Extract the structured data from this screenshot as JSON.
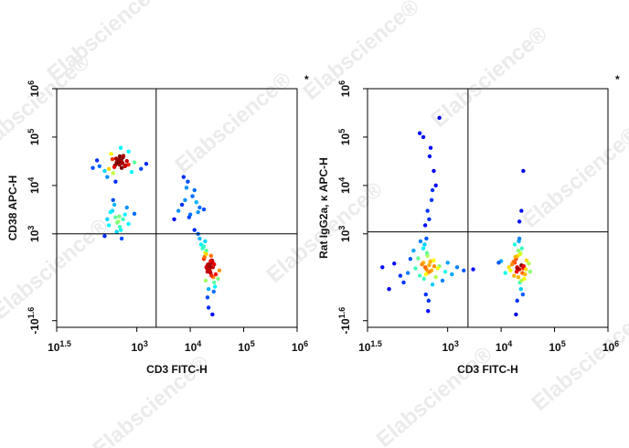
{
  "watermark": "Elabscience®",
  "chart_data": [
    {
      "type": "scatter",
      "xlabel": "CD3 FITC-H",
      "ylabel": "CD38 APC-H",
      "annotation": "*",
      "xscale": "log",
      "yscale": "biexponential",
      "xlim": [
        31.62,
        1000000
      ],
      "ylim": [
        -65,
        1000000
      ],
      "xticks": [
        {
          "value": 31.62,
          "label": "10",
          "exponent": "1.5"
        },
        {
          "value": 1000,
          "label": "10",
          "exponent": "3"
        },
        {
          "value": 10000,
          "label": "10",
          "exponent": "4"
        },
        {
          "value": 100000,
          "label": "10",
          "exponent": "5"
        },
        {
          "value": 1000000,
          "label": "10",
          "exponent": "6"
        }
      ],
      "yticks": [
        {
          "value": -39.81,
          "label": "-10",
          "exponent": "1.6"
        },
        {
          "value": 1000,
          "label": "10",
          "exponent": "3"
        },
        {
          "value": 10000,
          "label": "10",
          "exponent": "4"
        },
        {
          "value": 100000,
          "label": "10",
          "exponent": "5"
        },
        {
          "value": 1000000,
          "label": "10",
          "exponent": "6"
        }
      ],
      "gates": {
        "x": 2300,
        "y": 1000
      },
      "x": [
        420,
        480,
        510,
        390,
        450,
        530,
        600,
        350,
        300,
        700,
        460,
        440,
        380,
        550,
        650,
        250,
        200,
        900,
        1200,
        480,
        410,
        520,
        470,
        360,
        560,
        620,
        330,
        280,
        430,
        490,
        800,
        150,
        180,
        1500,
        700,
        400,
        500,
        450,
        540,
        460,
        300,
        400,
        500,
        350,
        450,
        600,
        250,
        700,
        380,
        420,
        550,
        320,
        480,
        650,
        280,
        520,
        900,
        430,
        360,
        470,
        6000,
        8000,
        10000,
        12000,
        7000,
        15000,
        9000,
        5000,
        11000,
        14000,
        8500,
        13000,
        7500,
        18000,
        9500,
        20000,
        22000,
        25000,
        18000,
        24000,
        21000,
        27000,
        19000,
        23000,
        26000,
        17000,
        28000,
        22500,
        20500,
        24500,
        30000,
        16000,
        21500,
        23500,
        25500,
        19500,
        18500,
        26500,
        22000,
        24000,
        20000,
        29000,
        15000,
        33000,
        21000,
        23000,
        25000,
        14000,
        27500,
        19000,
        22000,
        24000,
        35000,
        12000,
        26000,
        20000,
        23000,
        21000,
        28000,
        18000
      ],
      "y": [
        30000,
        28000,
        33000,
        26000,
        31000,
        29000,
        25000,
        35000,
        22000,
        27000,
        34000,
        30000,
        24000,
        38000,
        32000,
        20000,
        25000,
        30000,
        22000,
        40000,
        36000,
        23000,
        27000,
        18000,
        41000,
        26000,
        45000,
        15000,
        29000,
        31000,
        19000,
        23000,
        33000,
        28000,
        50000,
        12000,
        60000,
        32000,
        29000,
        30500,
        1500,
        2200,
        1200,
        3000,
        1800,
        2500,
        900,
        1600,
        4000,
        1100,
        2000,
        2800,
        1400,
        3500,
        2000,
        800,
        2600,
        1700,
        5000,
        2300,
        3000,
        5000,
        2500,
        8000,
        4000,
        3500,
        12000,
        2000,
        6000,
        2800,
        9000,
        4500,
        15000,
        3200,
        2200,
        200,
        180,
        250,
        300,
        150,
        220,
        120,
        400,
        170,
        260,
        500,
        90,
        210,
        190,
        350,
        140,
        600,
        230,
        160,
        280,
        100,
        330,
        200,
        60,
        240,
        450,
        70,
        800,
        110,
        30,
        190,
        130,
        1000,
        50,
        700,
        0,
        270,
        170,
        1200,
        -20,
        380,
        210,
        160,
        230,
        550
      ]
    },
    {
      "type": "scatter",
      "xlabel": "CD3 FITC-H",
      "ylabel": "Rat IgG2a, κ APC-H",
      "annotation": "*",
      "xscale": "log",
      "yscale": "biexponential",
      "xlim": [
        31.62,
        1000000
      ],
      "ylim": [
        -65,
        1000000
      ],
      "xticks": [
        {
          "value": 31.62,
          "label": "10",
          "exponent": "1.5"
        },
        {
          "value": 1000,
          "label": "10",
          "exponent": "3"
        },
        {
          "value": 10000,
          "label": "10",
          "exponent": "4"
        },
        {
          "value": 100000,
          "label": "10",
          "exponent": "5"
        },
        {
          "value": 1000000,
          "label": "10",
          "exponent": "6"
        }
      ],
      "yticks": [
        {
          "value": -39.81,
          "label": "-10",
          "exponent": "1.6"
        },
        {
          "value": 1000,
          "label": "10",
          "exponent": "3"
        },
        {
          "value": 10000,
          "label": "10",
          "exponent": "4"
        },
        {
          "value": 100000,
          "label": "10",
          "exponent": "5"
        },
        {
          "value": 1000000,
          "label": "10",
          "exponent": "6"
        }
      ],
      "gates": {
        "x": 2400,
        "y": 1100
      },
      "x": [
        400,
        380,
        420,
        450,
        350,
        500,
        300,
        550,
        250,
        600,
        200,
        700,
        150,
        900,
        100,
        1200,
        80,
        1500,
        420,
        360,
        480,
        390,
        410,
        330,
        520,
        460,
        370,
        440,
        280,
        650,
        230,
        800,
        180,
        1000,
        130,
        2000,
        60,
        400,
        430,
        350,
        470,
        390,
        310,
        560,
        3000,
        20000,
        22000,
        18000,
        25000,
        19000,
        24000,
        21000,
        17000,
        26000,
        23000,
        15000,
        28000,
        20500,
        22500,
        16000,
        30000,
        19500,
        24500,
        14000,
        27000,
        21500,
        12000,
        23500,
        18500,
        33000,
        20000,
        25500,
        10000,
        22000,
        17500,
        26500,
        19000,
        29000,
        21000,
        24000,
        9000,
        35000,
        20000,
        23000,
        18000,
        450,
        500,
        380,
        600,
        420,
        550,
        300,
        480,
        520,
        700,
        24000,
        26000,
        22000,
        350,
        460
      ],
      "y": [
        180,
        200,
        150,
        220,
        250,
        170,
        130,
        280,
        190,
        120,
        300,
        210,
        90,
        160,
        240,
        140,
        60,
        200,
        350,
        110,
        270,
        40,
        400,
        230,
        80,
        160,
        600,
        20,
        310,
        190,
        450,
        100,
        150,
        250,
        130,
        170,
        200,
        800,
        -10,
        500,
        260,
        140,
        700,
        210,
        180,
        200,
        180,
        250,
        150,
        300,
        220,
        120,
        260,
        190,
        400,
        170,
        140,
        350,
        90,
        230,
        280,
        160,
        500,
        200,
        110,
        700,
        150,
        60,
        330,
        240,
        190,
        40,
        270,
        800,
        130,
        210,
        -20,
        180,
        450,
        100,
        250,
        160,
        20,
        380,
        600,
        2000,
        5000,
        1500,
        10000,
        3000,
        20000,
        120000,
        60000,
        8000,
        250000,
        3000,
        20000,
        1800,
        100000,
        40000
      ]
    }
  ]
}
